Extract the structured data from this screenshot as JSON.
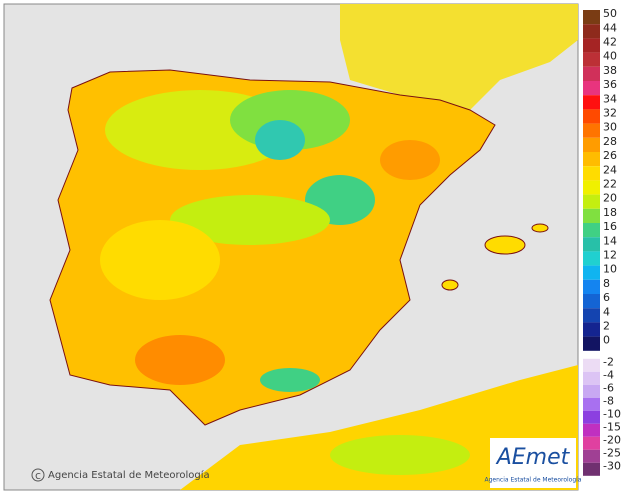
{
  "legend": {
    "items": [
      {
        "value": 50,
        "color": "#7a3c14"
      },
      {
        "value": 44,
        "color": "#8e2a1c"
      },
      {
        "value": 42,
        "color": "#a52424"
      },
      {
        "value": 40,
        "color": "#bc3036"
      },
      {
        "value": 38,
        "color": "#d0305a"
      },
      {
        "value": 36,
        "color": "#e8347e"
      },
      {
        "value": 34,
        "color": "#ff1010"
      },
      {
        "value": 32,
        "color": "#ff4a00"
      },
      {
        "value": 30,
        "color": "#ff7400"
      },
      {
        "value": 28,
        "color": "#ff9c00"
      },
      {
        "value": 26,
        "color": "#ffbc00"
      },
      {
        "value": 24,
        "color": "#ffdc00"
      },
      {
        "value": 22,
        "color": "#f0f000"
      },
      {
        "value": 20,
        "color": "#c4ee10"
      },
      {
        "value": 18,
        "color": "#80e040"
      },
      {
        "value": 16,
        "color": "#40d084"
      },
      {
        "value": 14,
        "color": "#28c0a8"
      },
      {
        "value": 12,
        "color": "#20d0d0"
      },
      {
        "value": 10,
        "color": "#10b4f0"
      },
      {
        "value": 8,
        "color": "#1484f0"
      },
      {
        "value": 6,
        "color": "#1464d4"
      },
      {
        "value": 4,
        "color": "#1444b0"
      },
      {
        "value": 2,
        "color": "#142490"
      },
      {
        "value": 0,
        "color": "#121462"
      },
      {
        "value": -2,
        "color": "#ecdcf4"
      },
      {
        "value": -4,
        "color": "#dcc4f4"
      },
      {
        "value": -6,
        "color": "#c8a8f2"
      },
      {
        "value": -8,
        "color": "#a870f0"
      },
      {
        "value": -10,
        "color": "#8c40e0"
      },
      {
        "value": -15,
        "color": "#c030c0"
      },
      {
        "value": -20,
        "color": "#e040a0"
      },
      {
        "value": -25,
        "color": "#a04094"
      },
      {
        "value": -30,
        "color": "#703070"
      }
    ]
  },
  "credit": "Agencia Estatal de Meteorología",
  "logo": {
    "name": "AEmet",
    "subtitle": "Agencia Estatal de Meteorología"
  }
}
